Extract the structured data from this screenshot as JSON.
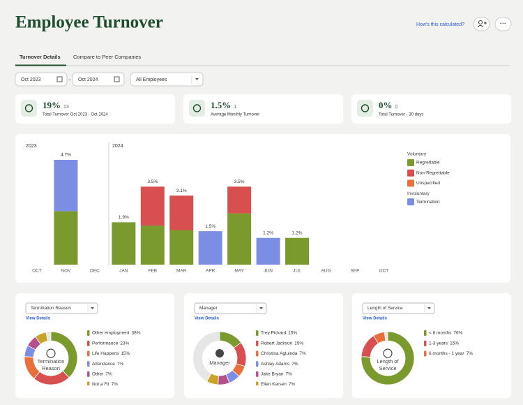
{
  "header": {
    "title": "Employee Turnover",
    "help_link": "How's this calculated?"
  },
  "tabs": [
    "Turnover Details",
    "Compare to Peer Companies"
  ],
  "filters": {
    "start": "Oct 2023",
    "separator": "–",
    "end": "Oct 2024",
    "group": "All Employees"
  },
  "stats": [
    {
      "value": "19%",
      "count": "13",
      "label": "Total Turnover Oct 2023 - Oct 2024"
    },
    {
      "value": "1.5%",
      "count": "1",
      "label": "Average Monthly Turnover"
    },
    {
      "value": "0%",
      "count": "0",
      "label": "Total Turnover - 30 days"
    }
  ],
  "chart_data": [
    {
      "type": "stacked_bar",
      "year_labels": [
        "2023",
        "2024"
      ],
      "categories": [
        "OCT",
        "NOV",
        "DEC",
        "JAN",
        "FEB",
        "MAR",
        "APR",
        "MAY",
        "JUN",
        "JUL",
        "AUG",
        "SEP",
        "OCT"
      ],
      "legend_groups": [
        "Voluntary",
        "Involuntary"
      ],
      "series": [
        {
          "name": "Regrettable",
          "color": "#7a9a2e",
          "values": [
            null,
            2.4,
            null,
            1.9,
            1.75,
            1.55,
            null,
            2.3,
            null,
            1.2,
            null,
            null,
            null
          ]
        },
        {
          "name": "Non-Regrettable",
          "color": "#d84f4f",
          "values": [
            null,
            null,
            null,
            null,
            1.75,
            1.55,
            null,
            1.2,
            null,
            null,
            null,
            null,
            null
          ]
        },
        {
          "name": "Unspecified",
          "color": "#e8703a",
          "values": [
            null,
            null,
            null,
            null,
            null,
            null,
            null,
            null,
            null,
            null,
            null,
            null,
            null
          ]
        },
        {
          "name": "Termination",
          "color": "#7b8ee3",
          "values": [
            null,
            2.3,
            null,
            null,
            null,
            null,
            1.5,
            null,
            1.2,
            null,
            null,
            null,
            null
          ]
        }
      ],
      "totals": [
        null,
        4.7,
        null,
        1.9,
        3.5,
        3.1,
        1.5,
        3.5,
        1.2,
        1.2,
        null,
        null,
        null
      ],
      "total_labels": [
        null,
        "4.7%",
        null,
        "1.9%",
        "3.5%",
        "3.1%",
        "1.5%",
        "3.5%",
        "1.2%",
        "1.2%",
        null,
        null,
        null
      ]
    },
    {
      "type": "donut",
      "selector": "Termination Reason",
      "link": "View Details",
      "center_label": "Termination Reason",
      "categories": [
        "Other employment",
        "Performance",
        "Life Happens",
        "Attendance",
        "Other",
        "Not a Fit"
      ],
      "values": [
        38,
        23,
        15,
        7,
        7,
        7
      ],
      "value_labels": [
        "38%",
        "23%",
        "15%",
        "7%",
        "7%",
        "7%"
      ],
      "colors": [
        "#7a9a2e",
        "#d84f4f",
        "#e8703a",
        "#7b8ee3",
        "#b5508f",
        "#c9a227"
      ]
    },
    {
      "type": "donut",
      "selector": "Manager",
      "link": "View Details",
      "center_label": "Manager",
      "categories": [
        "Trey Pickard",
        "Robert Jackson",
        "Christina Agluinda",
        "Ashley Adams",
        "Jake Bryan",
        "Ellen Karsen"
      ],
      "values": [
        15,
        15,
        7,
        7,
        7,
        7
      ],
      "value_labels": [
        "15%",
        "15%",
        "7%",
        "7%",
        "7%",
        "7%"
      ],
      "colors": [
        "#7a9a2e",
        "#d84f4f",
        "#e8703a",
        "#7b8ee3",
        "#b5508f",
        "#c9a227"
      ]
    },
    {
      "type": "donut",
      "selector": "Length of Service",
      "link": "View Details",
      "center_label": "Length of Service",
      "categories": [
        "< 6 months",
        "1-3 years",
        "6 months - 1 year"
      ],
      "values": [
        76,
        15,
        7
      ],
      "value_labels": [
        "76%",
        "15%",
        "7%"
      ],
      "colors": [
        "#7a9a2e",
        "#d84f4f",
        "#e8703a"
      ]
    }
  ]
}
